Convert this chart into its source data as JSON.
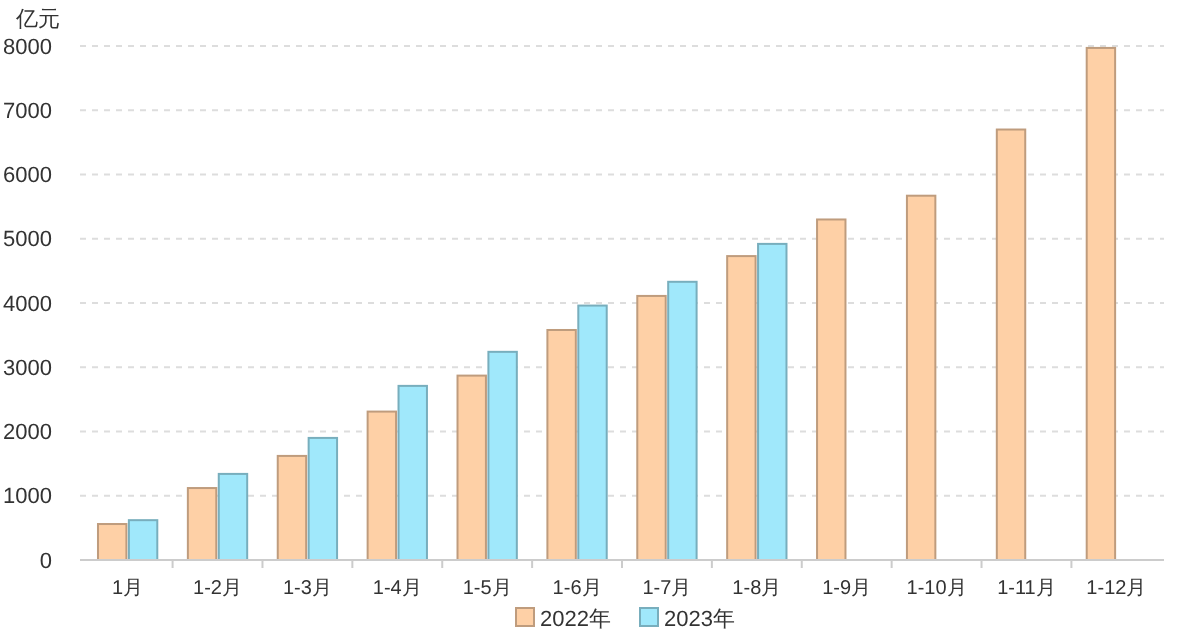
{
  "chart_data": {
    "type": "bar",
    "ylabel": "亿元",
    "categories": [
      "1月",
      "1-2月",
      "1-3月",
      "1-4月",
      "1-5月",
      "1-6月",
      "1-7月",
      "1-8月",
      "1-9月",
      "1-10月",
      "1-11月",
      "1-12月"
    ],
    "series": [
      {
        "name": "2022年",
        "color": "#fed0a6",
        "values": [
          560,
          1120,
          1620,
          2310,
          2870,
          3580,
          4110,
          4730,
          5300,
          5670,
          6700,
          7970
        ]
      },
      {
        "name": "2023年",
        "color": "#a0e8fb",
        "values": [
          620,
          1340,
          1900,
          2710,
          3240,
          3960,
          4330,
          4920,
          null,
          null,
          null,
          null
        ]
      }
    ],
    "ylim": [
      0,
      8000
    ],
    "yticks": [
      0,
      1000,
      2000,
      3000,
      4000,
      5000,
      6000,
      7000,
      8000
    ],
    "grid": "y",
    "legend": "bottom"
  }
}
